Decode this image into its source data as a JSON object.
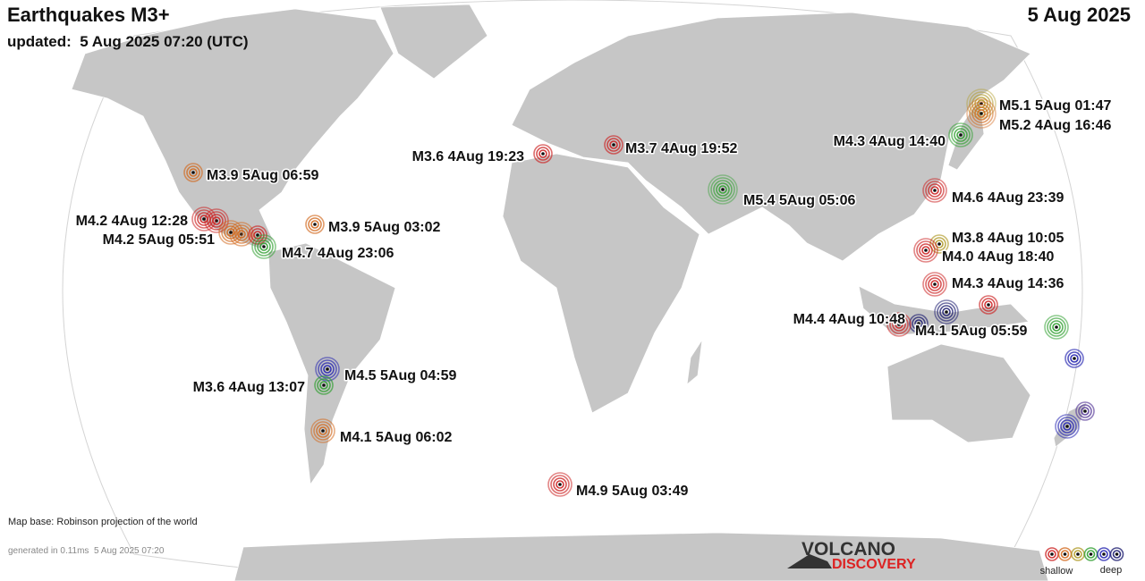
{
  "header": {
    "title": "Earthquakes M3+",
    "date": "5 Aug 2025",
    "updated": "updated:  5 Aug 2025 07:20 (UTC)"
  },
  "quakes": [
    {
      "label": "M5.1  5Aug 01:47"
    },
    {
      "label": "M5.2  4Aug 16:46"
    },
    {
      "label": "M4.3  4Aug 14:40"
    },
    {
      "label": "M3.6  4Aug 19:23"
    },
    {
      "label": "M3.7  4Aug 19:52"
    },
    {
      "label": "M5.4  5Aug 05:06"
    },
    {
      "label": "M4.6  4Aug 23:39"
    },
    {
      "label": "M3.9  5Aug 06:59"
    },
    {
      "label": "M3.9  5Aug 03:02"
    },
    {
      "label": "M4.2  4Aug 12:28"
    },
    {
      "label": "M4.2  5Aug 05:51"
    },
    {
      "label": "M4.7  4Aug 23:06"
    },
    {
      "label": "M3.8  4Aug 10:05"
    },
    {
      "label": "M4.0  4Aug 18:40"
    },
    {
      "label": "M4.3  4Aug 14:36"
    },
    {
      "label": "M4.4  4Aug 10:48"
    },
    {
      "label": "M4.1  5Aug 05:59"
    },
    {
      "label": "M4.5  5Aug 04:59"
    },
    {
      "label": "M3.6  4Aug 13:07"
    },
    {
      "label": "M4.1  5Aug 06:02"
    },
    {
      "label": "M4.9  5Aug 03:49"
    }
  ],
  "footer": {
    "map_base": "Map base: Robinson projection of the world",
    "generated": "generated in 0.11ms  5 Aug 2025 07:20"
  },
  "logo": {
    "line1": "VOLCANO",
    "line2": "DISCOVERY"
  },
  "legend": {
    "shallow": "shallow",
    "deep": "deep"
  }
}
